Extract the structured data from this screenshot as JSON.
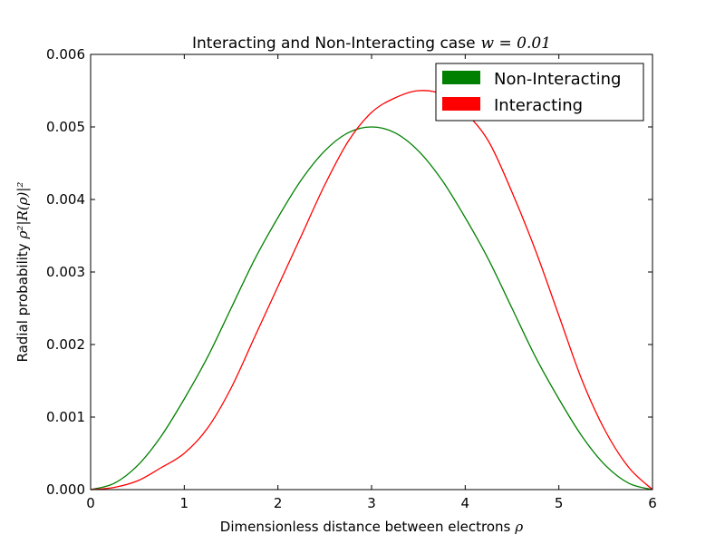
{
  "chart_data": {
    "type": "line",
    "title": "Interacting and Non-Interacting case",
    "title_math": "w = 0.01",
    "xlabel": "Dimensionless distance between electrons",
    "xlabel_math": "ρ",
    "ylabel": "Radial probability",
    "ylabel_math": "ρ²|R(ρ)|²",
    "xlim": [
      0,
      6
    ],
    "ylim": [
      0,
      0.006
    ],
    "xticks": [
      0,
      1,
      2,
      3,
      4,
      5,
      6
    ],
    "yticks": [
      "0.000",
      "0.001",
      "0.002",
      "0.003",
      "0.004",
      "0.005",
      "0.006"
    ],
    "grid": false,
    "legend_position": "top-right",
    "x": [
      0,
      0.25,
      0.5,
      0.75,
      1,
      1.25,
      1.5,
      1.75,
      2,
      2.25,
      2.5,
      2.75,
      3,
      3.25,
      3.5,
      3.75,
      4,
      4.25,
      4.5,
      4.75,
      5,
      5.25,
      5.5,
      5.75,
      6
    ],
    "series": [
      {
        "name": "Non-Interacting",
        "color": "#008000",
        "values": [
          0,
          8.5e-05,
          0.00033,
          0.00073,
          0.00125,
          0.00183,
          0.0025,
          0.00317,
          0.00375,
          0.00427,
          0.00467,
          0.00492,
          0.005,
          0.00492,
          0.00467,
          0.00427,
          0.00375,
          0.00317,
          0.0025,
          0.00183,
          0.00125,
          0.00073,
          0.00033,
          8.5e-05,
          0
        ]
      },
      {
        "name": "Interacting",
        "color": "#ff0000",
        "values": [
          0,
          3e-05,
          0.00012,
          0.0003,
          0.0005,
          0.00085,
          0.0014,
          0.0021,
          0.0028,
          0.0035,
          0.0042,
          0.0048,
          0.0052,
          0.0054,
          0.0055,
          0.00545,
          0.0052,
          0.0048,
          0.0041,
          0.0033,
          0.0024,
          0.0015,
          0.0008,
          0.0003,
          0
        ]
      }
    ]
  }
}
